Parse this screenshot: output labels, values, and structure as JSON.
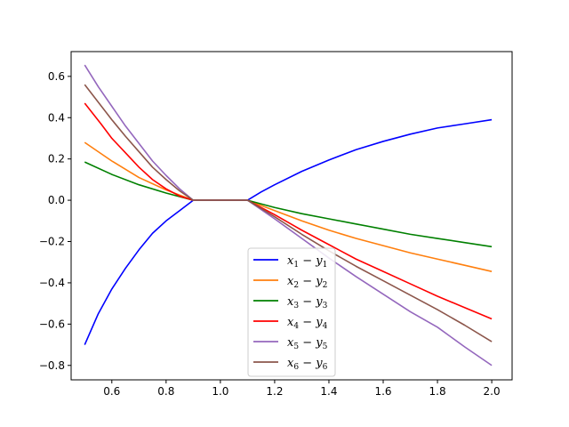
{
  "chart_data": {
    "type": "line",
    "title": "",
    "xlabel": "",
    "ylabel": "",
    "xlim": [
      0.45,
      2.075
    ],
    "ylim": [
      -0.87,
      0.72
    ],
    "x_ticks": [
      0.6,
      0.8,
      1.0,
      1.2,
      1.4,
      1.6,
      1.8,
      2.0
    ],
    "x_tick_labels": [
      "0.6",
      "0.8",
      "1.0",
      "1.2",
      "1.4",
      "1.6",
      "1.8",
      "2.0"
    ],
    "y_ticks": [
      -0.8,
      -0.6,
      -0.4,
      -0.2,
      0.0,
      0.2,
      0.4,
      0.6
    ],
    "y_tick_labels": [
      "−0.8",
      "−0.6",
      "−0.4",
      "−0.2",
      "0.0",
      "0.2",
      "0.4",
      "0.6"
    ],
    "grid": false,
    "legend_position": "lower-center",
    "series": [
      {
        "name": "x1 − y1",
        "label_main": "x",
        "label_sub": "1",
        "label_main2": "y",
        "label_sub2": "1",
        "color": "#0000ff",
        "x": [
          0.5,
          0.55,
          0.6,
          0.65,
          0.7,
          0.75,
          0.8,
          0.85,
          0.9,
          0.95,
          1.0,
          1.05,
          1.1,
          1.15,
          1.2,
          1.3,
          1.4,
          1.5,
          1.6,
          1.7,
          1.8,
          1.9,
          2.0
        ],
        "y": [
          -0.7,
          -0.55,
          -0.43,
          -0.33,
          -0.24,
          -0.16,
          -0.1,
          -0.05,
          0.0,
          0.0,
          0.0,
          0.0,
          0.0,
          0.04,
          0.075,
          0.14,
          0.195,
          0.245,
          0.285,
          0.32,
          0.35,
          0.37,
          0.39
        ]
      },
      {
        "name": "x2 − y2",
        "label_main": "x",
        "label_sub": "2",
        "label_main2": "y",
        "label_sub2": "2",
        "color": "#ff7f0e",
        "x": [
          0.5,
          0.6,
          0.7,
          0.8,
          0.9,
          1.0,
          1.1,
          1.2,
          1.3,
          1.4,
          1.5,
          1.6,
          1.7,
          1.8,
          1.9,
          2.0
        ],
        "y": [
          0.28,
          0.19,
          0.11,
          0.05,
          0.0,
          0.0,
          0.0,
          -0.05,
          -0.1,
          -0.145,
          -0.185,
          -0.22,
          -0.255,
          -0.285,
          -0.315,
          -0.345
        ]
      },
      {
        "name": "x3 − y3",
        "label_main": "x",
        "label_sub": "3",
        "label_main2": "y",
        "label_sub2": "3",
        "color": "#008000",
        "x": [
          0.5,
          0.6,
          0.7,
          0.8,
          0.9,
          1.0,
          1.1,
          1.2,
          1.3,
          1.4,
          1.5,
          1.6,
          1.7,
          1.8,
          1.9,
          2.0
        ],
        "y": [
          0.185,
          0.125,
          0.075,
          0.035,
          0.0,
          0.0,
          0.0,
          -0.035,
          -0.065,
          -0.09,
          -0.115,
          -0.14,
          -0.165,
          -0.185,
          -0.205,
          -0.225
        ]
      },
      {
        "name": "x4 − y4",
        "label_main": "x",
        "label_sub": "4",
        "label_main2": "y",
        "label_sub2": "4",
        "color": "#ff0000",
        "x": [
          0.5,
          0.53,
          0.56,
          0.6,
          0.65,
          0.7,
          0.75,
          0.8,
          0.85,
          0.9,
          1.0,
          1.1,
          1.2,
          1.3,
          1.4,
          1.5,
          1.6,
          1.7,
          1.8,
          1.9,
          2.0
        ],
        "y": [
          0.47,
          0.42,
          0.37,
          0.3,
          0.23,
          0.16,
          0.1,
          0.055,
          0.02,
          0.0,
          0.0,
          0.0,
          -0.07,
          -0.145,
          -0.215,
          -0.285,
          -0.345,
          -0.405,
          -0.465,
          -0.52,
          -0.575
        ]
      },
      {
        "name": "x5 − y5",
        "label_main": "x",
        "label_sub": "5",
        "label_main2": "y",
        "label_sub2": "5",
        "color": "#9467bd",
        "x": [
          0.5,
          0.55,
          0.6,
          0.65,
          0.7,
          0.75,
          0.8,
          0.85,
          0.9,
          1.0,
          1.1,
          1.2,
          1.3,
          1.4,
          1.5,
          1.6,
          1.7,
          1.8,
          1.9,
          2.0
        ],
        "y": [
          0.655,
          0.55,
          0.455,
          0.36,
          0.275,
          0.19,
          0.12,
          0.055,
          0.0,
          0.0,
          0.0,
          -0.09,
          -0.185,
          -0.28,
          -0.37,
          -0.455,
          -0.54,
          -0.615,
          -0.71,
          -0.8
        ]
      },
      {
        "name": "x6 − y6",
        "label_main": "x",
        "label_sub": "6",
        "label_main2": "y",
        "label_sub2": "6",
        "color": "#8c564b",
        "x": [
          0.5,
          0.55,
          0.6,
          0.65,
          0.7,
          0.75,
          0.8,
          0.85,
          0.9,
          1.0,
          1.1,
          1.2,
          1.3,
          1.4,
          1.5,
          1.6,
          1.7,
          1.8,
          1.9,
          2.0
        ],
        "y": [
          0.56,
          0.475,
          0.39,
          0.31,
          0.235,
          0.16,
          0.1,
          0.045,
          0.0,
          0.0,
          0.0,
          -0.08,
          -0.165,
          -0.245,
          -0.32,
          -0.39,
          -0.46,
          -0.53,
          -0.605,
          -0.685
        ]
      }
    ]
  }
}
